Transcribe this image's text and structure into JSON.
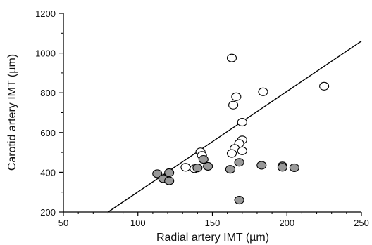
{
  "chart_data": {
    "type": "scatter",
    "xlabel": "Radial artery IMT (µm)",
    "ylabel": "Carotid artery IMT (µm)",
    "xlim": [
      50,
      250
    ],
    "ylim": [
      200,
      1200
    ],
    "xticks": [
      50,
      100,
      150,
      200,
      250
    ],
    "yticks": [
      200,
      400,
      600,
      800,
      1000,
      1200
    ],
    "grid": false,
    "series": [
      {
        "marker": "open-circle",
        "color": "#ffffff",
        "points": [
          [
            163,
            975
          ],
          [
            166,
            780
          ],
          [
            164,
            738
          ],
          [
            184,
            805
          ],
          [
            225,
            833
          ],
          [
            170,
            652
          ],
          [
            170,
            563
          ],
          [
            168,
            545
          ],
          [
            165,
            520
          ],
          [
            170,
            508
          ],
          [
            163,
            495
          ],
          [
            142,
            503
          ],
          [
            143,
            485
          ],
          [
            132,
            425
          ],
          [
            138,
            418
          ]
        ]
      },
      {
        "marker": "filled-circle",
        "color": "#999999",
        "points": [
          [
            113,
            393
          ],
          [
            117,
            368
          ],
          [
            121,
            398
          ],
          [
            121,
            357
          ],
          [
            140,
            422
          ],
          [
            144,
            465
          ],
          [
            147,
            430
          ],
          [
            162,
            415
          ],
          [
            168,
            450
          ],
          [
            168,
            260
          ],
          [
            183,
            435
          ],
          [
            197,
            432
          ],
          [
            197,
            425
          ],
          [
            205,
            423
          ]
        ]
      }
    ],
    "regression_line": {
      "x": [
        80,
        250
      ],
      "y": [
        200,
        1060
      ]
    }
  }
}
